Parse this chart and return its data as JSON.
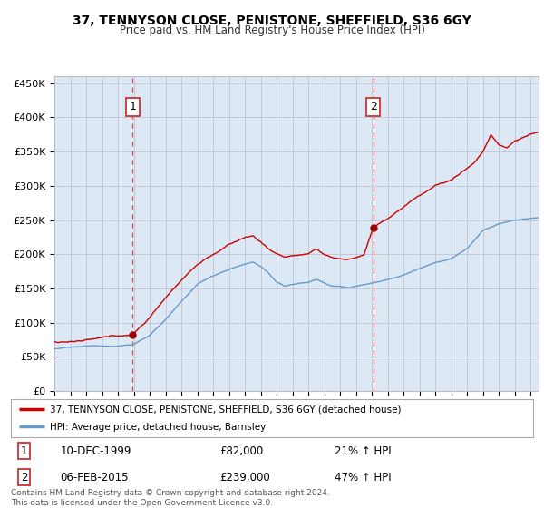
{
  "title": "37, TENNYSON CLOSE, PENISTONE, SHEFFIELD, S36 6GY",
  "subtitle": "Price paid vs. HM Land Registry's House Price Index (HPI)",
  "legend_line1": "37, TENNYSON CLOSE, PENISTONE, SHEFFIELD, S36 6GY (detached house)",
  "legend_line2": "HPI: Average price, detached house, Barnsley",
  "annotation1_date": "10-DEC-1999",
  "annotation1_price": "£82,000",
  "annotation1_hpi": "21% ↑ HPI",
  "annotation2_date": "06-FEB-2015",
  "annotation2_price": "£239,000",
  "annotation2_hpi": "47% ↑ HPI",
  "footer": "Contains HM Land Registry data © Crown copyright and database right 2024.\nThis data is licensed under the Open Government Licence v3.0.",
  "sale1_year": 1999.92,
  "sale1_price": 82000,
  "sale2_year": 2015.09,
  "sale2_price": 239000,
  "red_line_color": "#cc0000",
  "blue_line_color": "#6699cc",
  "bg_color": "#dce9f5",
  "plot_bg": "#ffffff",
  "grid_color": "#bbbbcc",
  "dashed_vline_color": "#dd4444",
  "ylim": [
    0,
    460000
  ],
  "xlim_start": 1995.0,
  "xlim_end": 2025.5,
  "yticks": [
    0,
    50000,
    100000,
    150000,
    200000,
    250000,
    300000,
    350000,
    400000,
    450000
  ],
  "ylabels": [
    "£0",
    "£50K",
    "£100K",
    "£150K",
    "£200K",
    "£250K",
    "£300K",
    "£350K",
    "£400K",
    "£450K"
  ]
}
